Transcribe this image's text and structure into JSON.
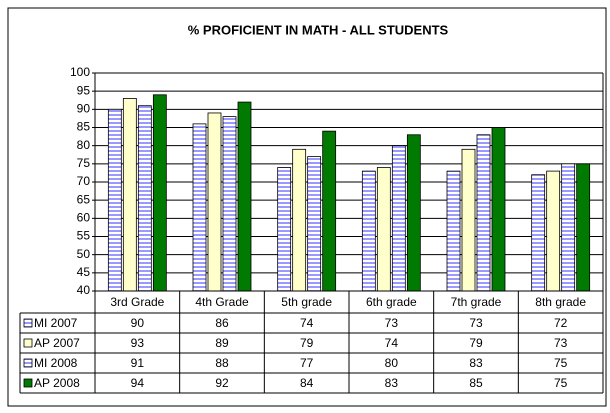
{
  "chart_data": {
    "type": "bar",
    "title": "% PROFICIENT IN MATH - ALL STUDENTS",
    "categories": [
      "3rd Grade",
      "4th Grade",
      "5th grade",
      "6th grade",
      "7th grade",
      "8th grade"
    ],
    "series": [
      {
        "name": "MI 2007",
        "color": "#9999ff",
        "pattern": "stripes",
        "values": [
          90,
          86,
          74,
          73,
          73,
          72
        ]
      },
      {
        "name": "AP 2007",
        "color": "#ffffcc",
        "values": [
          93,
          89,
          79,
          74,
          79,
          73
        ]
      },
      {
        "name": "MI 2008",
        "color": "#9999ff",
        "pattern": "stripes",
        "values": [
          91,
          88,
          77,
          80,
          83,
          75
        ]
      },
      {
        "name": "AP 2008",
        "color": "#007a00",
        "values": [
          94,
          92,
          84,
          83,
          85,
          75
        ]
      }
    ],
    "ylim": [
      40,
      100
    ],
    "yticks": [
      40,
      45,
      50,
      55,
      60,
      65,
      70,
      75,
      80,
      85,
      90,
      95,
      100
    ],
    "grid": true,
    "data_table": true
  }
}
